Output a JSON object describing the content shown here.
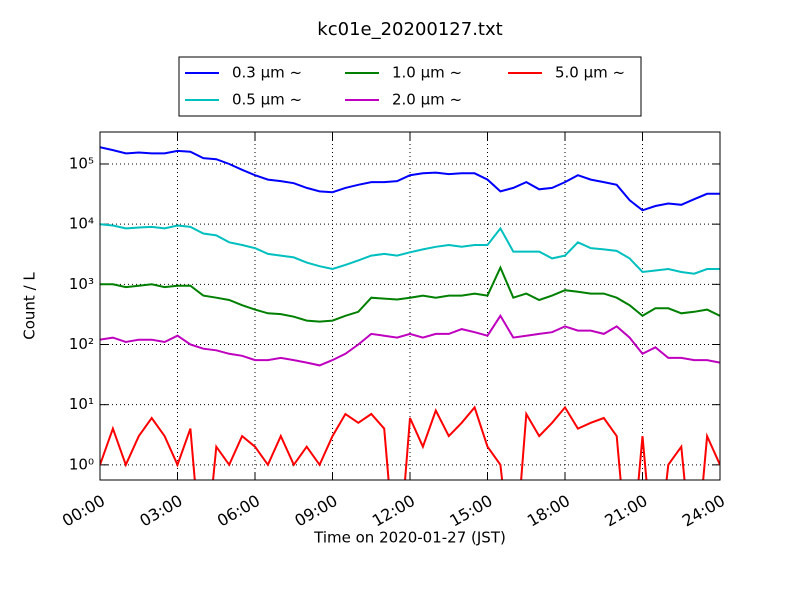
{
  "chart_data": {
    "type": "line",
    "title": "kc01e_20200127.txt",
    "x_label": "Time on 2020-01-27 (JST)",
    "y_label": "Count / L",
    "log_y": true,
    "grid": true,
    "legend_position": "top",
    "x": [
      0,
      0.5,
      1,
      1.5,
      2,
      2.5,
      3,
      3.5,
      4,
      4.5,
      5,
      5.5,
      6,
      6.5,
      7,
      7.5,
      8,
      8.5,
      9,
      9.5,
      10,
      10.5,
      11,
      11.5,
      12,
      12.5,
      13,
      13.5,
      14,
      14.5,
      15,
      15.5,
      16,
      16.5,
      17,
      17.5,
      18,
      18.5,
      19,
      19.5,
      20,
      20.5,
      21,
      21.5,
      22,
      22.5,
      23,
      23.5,
      24
    ],
    "xlim": [
      0,
      24
    ],
    "xticks": [
      {
        "value": 0,
        "label": "00:00"
      },
      {
        "value": 3,
        "label": "03:00"
      },
      {
        "value": 6,
        "label": "06:00"
      },
      {
        "value": 9,
        "label": "09:00"
      },
      {
        "value": 12,
        "label": "12:00"
      },
      {
        "value": 15,
        "label": "15:00"
      },
      {
        "value": 18,
        "label": "18:00"
      },
      {
        "value": 21,
        "label": "21:00"
      },
      {
        "value": 24,
        "label": "24:00"
      }
    ],
    "ylim": [
      0.56,
      340000
    ],
    "yticks": [
      {
        "value": 1,
        "label": "10⁰"
      },
      {
        "value": 10,
        "label": "10¹"
      },
      {
        "value": 100,
        "label": "10²"
      },
      {
        "value": 1000,
        "label": "10³"
      },
      {
        "value": 10000,
        "label": "10⁴"
      },
      {
        "value": 100000,
        "label": "10⁵"
      }
    ],
    "series": [
      {
        "name": "0.3 µm ~",
        "color": "#0000ff",
        "values": [
          190000,
          170000,
          150000,
          155000,
          150000,
          150000,
          165000,
          160000,
          125000,
          120000,
          100000,
          80000,
          65000,
          55000,
          52000,
          48000,
          40000,
          35000,
          34000,
          40000,
          45000,
          50000,
          50000,
          52000,
          65000,
          70000,
          72000,
          68000,
          70000,
          70000,
          55000,
          35000,
          40000,
          50000,
          38000,
          40000,
          50000,
          65000,
          55000,
          50000,
          45000,
          25000,
          17000,
          20000,
          22000,
          21000,
          26000,
          32000,
          32000
        ]
      },
      {
        "name": "0.5 µm ~",
        "color": "#00bfbf",
        "values": [
          10000,
          9500,
          8500,
          8800,
          9000,
          8500,
          9500,
          9000,
          7000,
          6500,
          5000,
          4500,
          4000,
          3200,
          3000,
          2800,
          2300,
          2000,
          1800,
          2100,
          2500,
          3000,
          3200,
          3000,
          3400,
          3800,
          4200,
          4500,
          4200,
          4500,
          4500,
          8500,
          3500,
          3500,
          3500,
          2700,
          3000,
          5000,
          4000,
          3800,
          3600,
          2700,
          1600,
          1700,
          1800,
          1600,
          1500,
          1800,
          1800
        ]
      },
      {
        "name": "1.0 µm ~",
        "color": "#008000",
        "values": [
          1000,
          1000,
          900,
          950,
          1000,
          900,
          950,
          950,
          650,
          600,
          550,
          450,
          380,
          330,
          320,
          290,
          250,
          240,
          250,
          300,
          350,
          600,
          580,
          560,
          600,
          650,
          600,
          650,
          650,
          700,
          650,
          1900,
          600,
          700,
          550,
          650,
          800,
          750,
          700,
          700,
          600,
          450,
          300,
          400,
          400,
          330,
          350,
          380,
          300
        ]
      },
      {
        "name": "2.0 µm ~",
        "color": "#bf00bf",
        "values": [
          120,
          130,
          110,
          120,
          120,
          110,
          140,
          100,
          85,
          80,
          70,
          65,
          55,
          55,
          60,
          55,
          50,
          45,
          55,
          70,
          100,
          150,
          140,
          130,
          150,
          130,
          150,
          150,
          180,
          160,
          140,
          300,
          130,
          140,
          150,
          160,
          200,
          170,
          170,
          150,
          200,
          130,
          70,
          90,
          60,
          60,
          55,
          55,
          50
        ]
      },
      {
        "name": "5.0 µm ~",
        "color": "#ff0000",
        "values": [
          1,
          4,
          1,
          3,
          6,
          3,
          1,
          4,
          0,
          2,
          1,
          3,
          2,
          1,
          3,
          1,
          2,
          1,
          3,
          7,
          5,
          7,
          4,
          0,
          6,
          2,
          8,
          3,
          5,
          9,
          2,
          1,
          0,
          7,
          3,
          5,
          9,
          4,
          5,
          6,
          3,
          0,
          3,
          0,
          1,
          2,
          0,
          3,
          1
        ]
      }
    ]
  }
}
